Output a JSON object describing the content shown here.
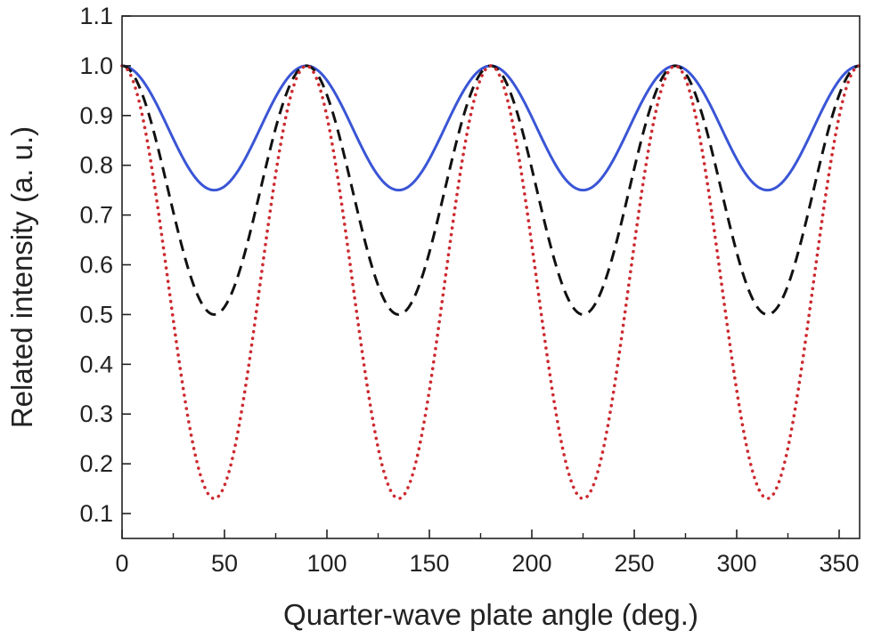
{
  "chart_data": {
    "type": "line",
    "title": "",
    "xlabel": "Quarter-wave plate angle (deg.)",
    "ylabel": "Related intensity (a. u.)",
    "xlim": [
      0,
      360
    ],
    "ylim": [
      0.05,
      1.1
    ],
    "x_ticks": [
      0,
      50,
      100,
      150,
      200,
      250,
      300,
      350
    ],
    "x_tick_labels": [
      "0",
      "50",
      "100",
      "150",
      "200",
      "250",
      "300",
      "350"
    ],
    "x_minor_ticks": [
      25,
      75,
      125,
      175,
      225,
      275,
      325
    ],
    "y_ticks": [
      0.1,
      0.2,
      0.3,
      0.4,
      0.5,
      0.6,
      0.7,
      0.8,
      0.9,
      1.0,
      1.1
    ],
    "y_tick_labels": [
      "0.1",
      "0.2",
      "0.3",
      "0.4",
      "0.5",
      "0.6",
      "0.7",
      "0.8",
      "0.9",
      "1.0",
      "1.1"
    ],
    "grid": false,
    "legend": "none",
    "x": [
      0,
      15,
      30,
      45,
      60,
      75,
      90,
      105,
      120,
      135,
      150,
      165,
      180,
      195,
      210,
      225,
      240,
      255,
      270,
      285,
      300,
      315,
      330,
      345,
      360
    ],
    "series": [
      {
        "style": "solid",
        "color": "#3a55d6",
        "values": [
          1.0,
          0.9375,
          0.8125,
          0.75,
          0.8125,
          0.9375,
          1.0,
          0.9375,
          0.8125,
          0.75,
          0.8125,
          0.9375,
          1.0,
          0.9375,
          0.8125,
          0.75,
          0.8125,
          0.9375,
          1.0,
          0.9375,
          0.8125,
          0.75,
          0.8125,
          0.9375,
          1.0
        ]
      },
      {
        "style": "dashed",
        "color": "#111111",
        "values": [
          1.0,
          0.875,
          0.625,
          0.5,
          0.625,
          0.875,
          1.0,
          0.875,
          0.625,
          0.5,
          0.625,
          0.875,
          1.0,
          0.875,
          0.625,
          0.5,
          0.625,
          0.875,
          1.0,
          0.875,
          0.625,
          0.5,
          0.625,
          0.875,
          1.0
        ]
      },
      {
        "style": "dotted",
        "color": "#cc2a30",
        "values": [
          1.0,
          0.7825,
          0.3475,
          0.13,
          0.3475,
          0.7825,
          1.0,
          0.7825,
          0.3475,
          0.13,
          0.3475,
          0.7825,
          1.0,
          0.7825,
          0.3475,
          0.13,
          0.3475,
          0.7825,
          1.0,
          0.7825,
          0.3475,
          0.13,
          0.3475,
          0.7825,
          1.0
        ]
      }
    ]
  }
}
